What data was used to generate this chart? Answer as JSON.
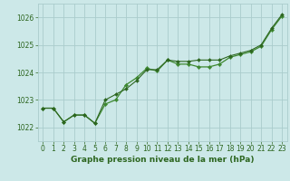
{
  "title": "Graphe pression niveau de la mer (hPa)",
  "background_color": "#cce8e8",
  "grid_color": "#aacccc",
  "line_color_dark": "#2d6620",
  "line_color_light": "#3d8830",
  "xlim": [
    -0.5,
    23.5
  ],
  "ylim": [
    1021.5,
    1026.5
  ],
  "yticks": [
    1022,
    1023,
    1024,
    1025,
    1026
  ],
  "xticks": [
    0,
    1,
    2,
    3,
    4,
    5,
    6,
    7,
    8,
    9,
    10,
    11,
    12,
    13,
    14,
    15,
    16,
    17,
    18,
    19,
    20,
    21,
    22,
    23
  ],
  "series1_x": [
    0,
    1,
    2,
    3,
    4,
    5,
    6,
    7,
    8,
    9,
    10,
    11,
    12,
    13,
    14,
    15,
    16,
    17,
    18,
    19,
    20,
    21,
    22,
    23
  ],
  "series1_y": [
    1022.7,
    1022.7,
    1022.2,
    1022.45,
    1022.45,
    1022.15,
    1022.85,
    1023.0,
    1023.55,
    1023.8,
    1024.15,
    1024.05,
    1024.45,
    1024.3,
    1024.3,
    1024.2,
    1024.2,
    1024.3,
    1024.55,
    1024.65,
    1024.75,
    1024.95,
    1025.55,
    1026.05
  ],
  "series2_x": [
    0,
    1,
    2,
    3,
    4,
    5,
    6,
    7,
    8,
    9,
    10,
    11,
    12,
    13,
    14,
    15,
    16,
    17,
    18,
    19,
    20,
    21,
    22,
    23
  ],
  "series2_y": [
    1022.7,
    1022.7,
    1022.2,
    1022.45,
    1022.45,
    1022.15,
    1023.0,
    1023.2,
    1023.4,
    1023.7,
    1024.1,
    1024.1,
    1024.45,
    1024.4,
    1024.4,
    1024.45,
    1024.45,
    1024.45,
    1024.6,
    1024.7,
    1024.8,
    1025.0,
    1025.6,
    1026.1
  ],
  "tick_fontsize": 5.5,
  "label_fontsize": 6.5,
  "linewidth1": 0.9,
  "linewidth2": 0.8,
  "markersize1": 2.2,
  "markersize2": 2.0
}
